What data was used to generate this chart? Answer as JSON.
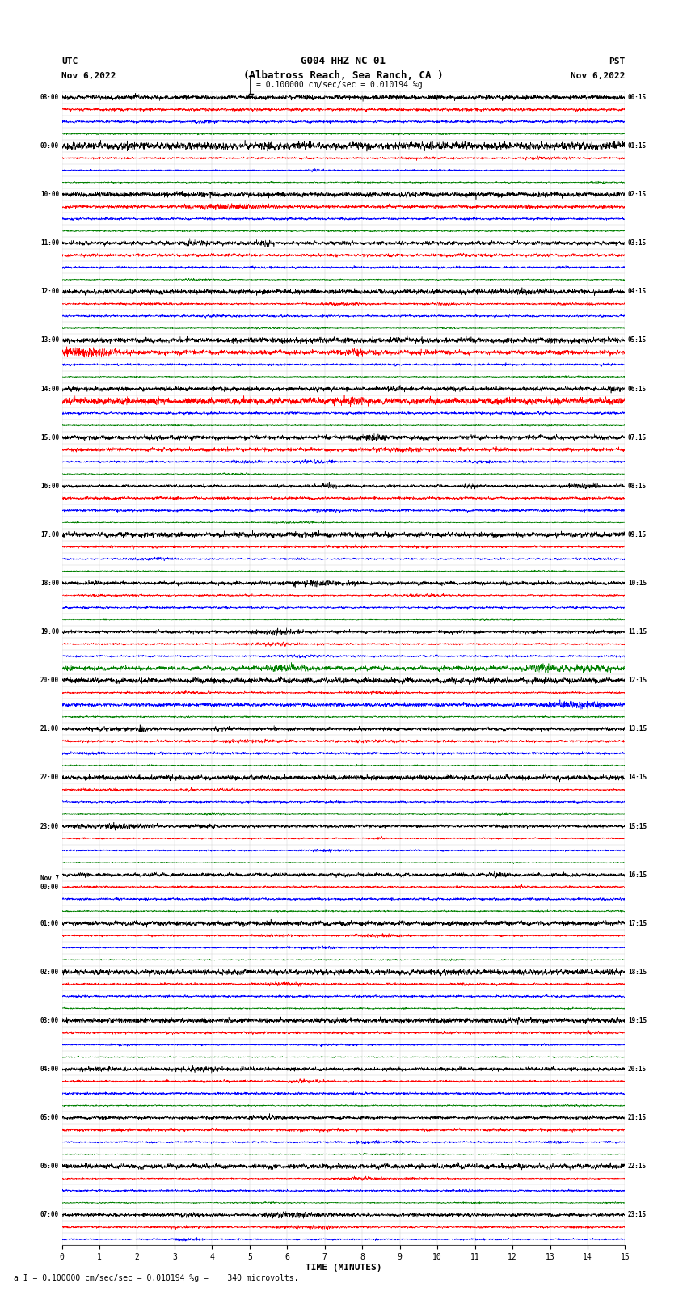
{
  "title_line1": "G004 HHZ NC 01",
  "title_line2": "(Albatross Reach, Sea Ranch, CA )",
  "scale_text": "= 0.100000 cm/sec/sec = 0.010194 %g",
  "utc_label": "UTC",
  "pst_label": "PST",
  "date_left": "Nov 6,2022",
  "date_right": "Nov 6,2022",
  "bottom_note": "a I = 0.100000 cm/sec/sec = 0.010194 %g =    340 microvolts.",
  "xlabel": "TIME (MINUTES)",
  "xlim": [
    0,
    15
  ],
  "xticks": [
    0,
    1,
    2,
    3,
    4,
    5,
    6,
    7,
    8,
    9,
    10,
    11,
    12,
    13,
    14,
    15
  ],
  "colors": [
    "black",
    "red",
    "blue",
    "green"
  ],
  "fig_width": 8.5,
  "fig_height": 16.13,
  "left_times_utc": [
    "08:00",
    "",
    "",
    "",
    "09:00",
    "",
    "",
    "",
    "10:00",
    "",
    "",
    "",
    "11:00",
    "",
    "",
    "",
    "12:00",
    "",
    "",
    "",
    "13:00",
    "",
    "",
    "",
    "14:00",
    "",
    "",
    "",
    "15:00",
    "",
    "",
    "",
    "16:00",
    "",
    "",
    "",
    "17:00",
    "",
    "",
    "",
    "18:00",
    "",
    "",
    "",
    "19:00",
    "",
    "",
    "",
    "20:00",
    "",
    "",
    "",
    "21:00",
    "",
    "",
    "",
    "22:00",
    "",
    "",
    "",
    "23:00",
    "",
    "",
    "",
    "Nov 7",
    "00:00",
    "",
    "",
    "01:00",
    "",
    "",
    "",
    "02:00",
    "",
    "",
    "",
    "03:00",
    "",
    "",
    "",
    "04:00",
    "",
    "",
    "",
    "05:00",
    "",
    "",
    "",
    "06:00",
    "",
    "",
    "",
    "07:00",
    "",
    ""
  ],
  "right_times_pst": [
    "00:15",
    "",
    "",
    "",
    "01:15",
    "",
    "",
    "",
    "02:15",
    "",
    "",
    "",
    "03:15",
    "",
    "",
    "",
    "04:15",
    "",
    "",
    "",
    "05:15",
    "",
    "",
    "",
    "06:15",
    "",
    "",
    "",
    "07:15",
    "",
    "",
    "",
    "08:15",
    "",
    "",
    "",
    "09:15",
    "",
    "",
    "",
    "10:15",
    "",
    "",
    "",
    "11:15",
    "",
    "",
    "",
    "12:15",
    "",
    "",
    "",
    "13:15",
    "",
    "",
    "",
    "14:15",
    "",
    "",
    "",
    "15:15",
    "",
    "",
    "",
    "16:15",
    "",
    "",
    "",
    "17:15",
    "",
    "",
    "",
    "18:15",
    "",
    "",
    "",
    "19:15",
    "",
    "",
    "",
    "20:15",
    "",
    "",
    "",
    "21:15",
    "",
    "",
    "",
    "22:15",
    "",
    "",
    "",
    "23:15",
    "",
    ""
  ],
  "noise_amp": [
    0.38,
    0.22,
    0.18,
    0.12,
    0.55,
    0.22,
    0.18,
    0.12,
    0.45,
    0.38,
    0.18,
    0.12,
    0.38,
    0.22,
    0.18,
    0.12,
    0.38,
    0.22,
    0.18,
    0.12,
    0.38,
    0.55,
    0.18,
    0.12,
    0.38,
    0.6,
    0.18,
    0.12,
    0.38,
    0.28,
    0.22,
    0.12,
    0.38,
    0.22,
    0.2,
    0.12,
    0.38,
    0.22,
    0.18,
    0.12,
    0.38,
    0.22,
    0.18,
    0.12,
    0.38,
    0.22,
    0.18,
    0.55,
    0.38,
    0.22,
    0.45,
    0.12,
    0.38,
    0.22,
    0.18,
    0.12,
    0.38,
    0.22,
    0.18,
    0.12,
    0.38,
    0.22,
    0.18,
    0.12,
    0.38,
    0.22,
    0.18,
    0.12,
    0.38,
    0.22,
    0.18,
    0.12,
    0.38,
    0.22,
    0.18,
    0.12,
    0.38,
    0.22,
    0.18,
    0.12,
    0.38,
    0.22,
    0.18,
    0.12,
    0.38,
    0.22,
    0.18,
    0.12,
    0.38,
    0.22,
    0.18,
    0.12,
    0.38,
    0.22,
    0.18
  ]
}
